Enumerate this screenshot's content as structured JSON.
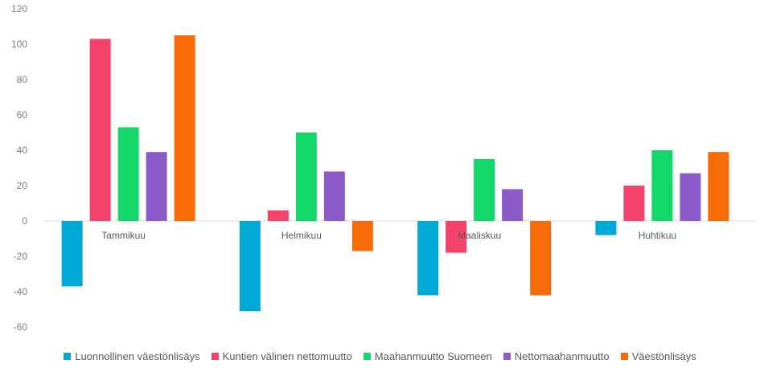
{
  "chart_data": {
    "type": "bar",
    "title": "",
    "xlabel": "",
    "ylabel": "",
    "ylim": [
      -60,
      120
    ],
    "yticks": [
      120,
      100,
      80,
      60,
      40,
      20,
      0,
      -20,
      -40,
      -60
    ],
    "grid": false,
    "legend_position": "bottom",
    "categories": [
      "Tammikuu",
      "Helmikuu",
      "Maaliskuu",
      "Huhtikuu"
    ],
    "series": [
      {
        "name": "Luonnollinen väestönlisäys",
        "color": "#00a8d6",
        "values": [
          -37,
          -51,
          -42,
          -8
        ]
      },
      {
        "name": "Kuntien välinen nettomuutto",
        "color": "#f4436a",
        "values": [
          103,
          6,
          -18,
          20
        ]
      },
      {
        "name": "Maahanmuutto Suomeen",
        "color": "#14d769",
        "values": [
          53,
          50,
          35,
          40
        ]
      },
      {
        "name": "Nettomaahanmuutto",
        "color": "#8b5cc9",
        "values": [
          39,
          28,
          18,
          27
        ]
      },
      {
        "name": "Väestönlisäys",
        "color": "#f96a08",
        "values": [
          105,
          -17,
          -42,
          39
        ]
      }
    ]
  }
}
